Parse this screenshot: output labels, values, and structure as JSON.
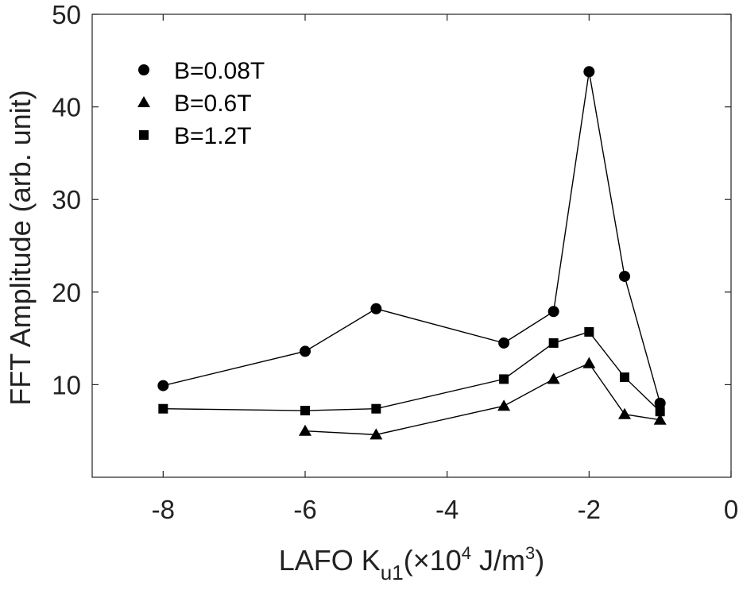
{
  "chart_data": {
    "type": "line",
    "x_axis": {
      "label_base": "LAFO K",
      "label_sub": "u1",
      "label_unit_pre": "(×10",
      "label_exp": "4",
      "label_unit_mid": " J/m",
      "label_exp2": "3",
      "label_unit_post": ")",
      "range": [
        -9,
        0
      ],
      "ticks": [
        -8,
        -6,
        -4,
        -2,
        0
      ],
      "tick_labels": [
        "-8",
        "-6",
        "-4",
        "-2",
        "0"
      ]
    },
    "y_axis": {
      "label": "FFT Amplitude (arb. unit)",
      "range": [
        0,
        50
      ],
      "ticks": [
        10,
        20,
        30,
        40,
        50
      ],
      "tick_labels": [
        "10",
        "20",
        "30",
        "40",
        "50"
      ]
    },
    "grid": false,
    "legend_position": "top-left",
    "series": [
      {
        "name": "B=0.08T",
        "marker": "circle",
        "x": [
          -8,
          -6,
          -5,
          -3.2,
          -2.5,
          -2,
          -1.5,
          -1
        ],
        "y": [
          9.9,
          13.6,
          18.2,
          14.5,
          17.9,
          43.8,
          21.7,
          8.0
        ]
      },
      {
        "name": "B=0.6T",
        "marker": "triangle",
        "x": [
          -6,
          -5,
          -3.2,
          -2.5,
          -2,
          -1.5,
          -1
        ],
        "y": [
          5.0,
          4.6,
          7.7,
          10.6,
          12.3,
          6.8,
          6.2
        ]
      },
      {
        "name": "B=1.2T",
        "marker": "square",
        "x": [
          -8,
          -6,
          -5,
          -3.2,
          -2.5,
          -2,
          -1.5,
          -1
        ],
        "y": [
          7.4,
          7.2,
          7.4,
          10.6,
          14.5,
          15.7,
          10.8,
          7.1
        ]
      }
    ]
  }
}
